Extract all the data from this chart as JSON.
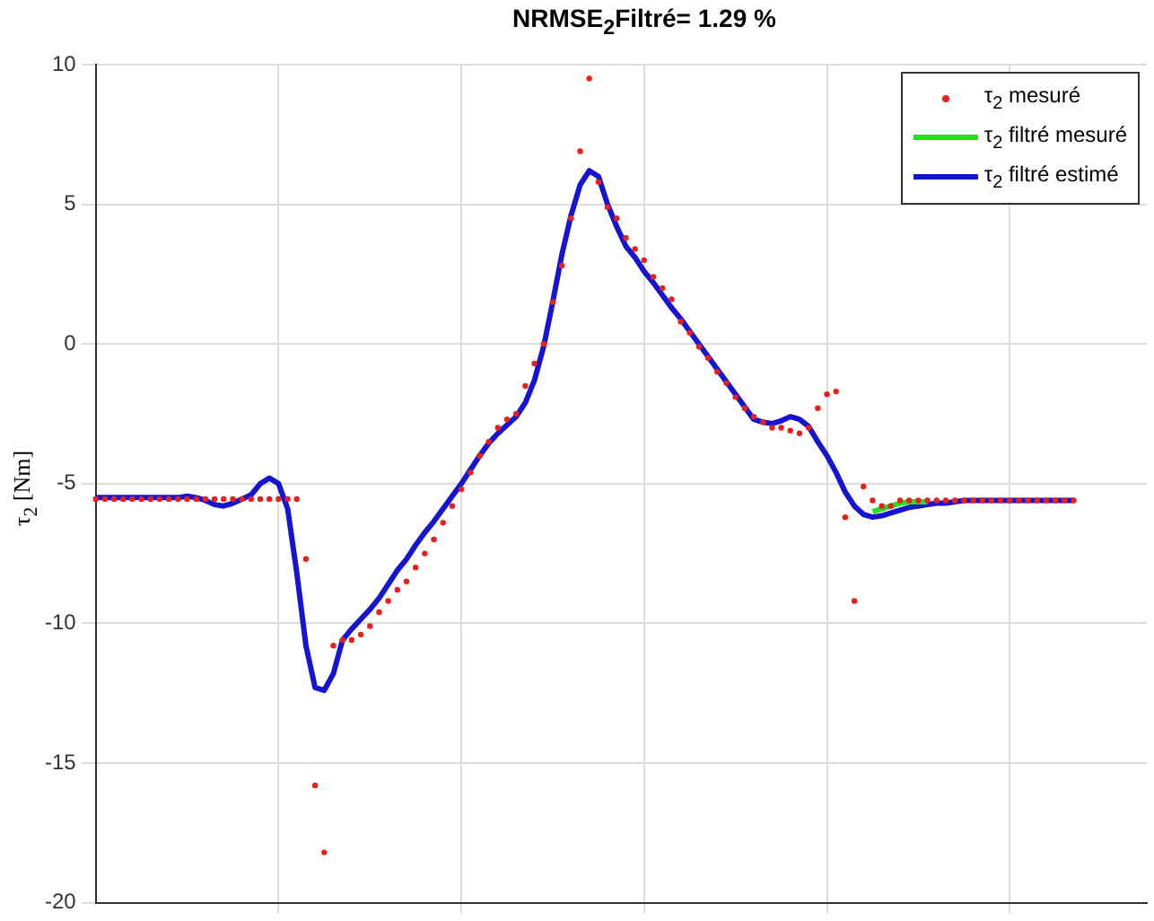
{
  "chart_data": {
    "type": "line",
    "title": "NRMSE$_{2}$Filtré=  1.29 %",
    "ylabel": "τ$_{2}$ [Nm]",
    "categories": [
      null,
      null,
      null,
      null,
      null,
      null,
      null,
      null,
      null,
      null,
      null,
      null,
      null,
      null,
      null,
      null,
      null,
      null,
      null,
      null,
      null,
      null,
      null,
      null,
      null,
      null,
      null,
      null,
      null,
      null,
      null,
      null,
      null,
      null,
      null,
      null,
      null,
      null,
      null,
      null,
      null,
      null,
      null,
      null,
      null,
      null,
      null,
      null,
      null,
      null,
      null,
      null,
      null,
      null,
      null,
      null,
      null,
      null,
      null,
      null,
      null,
      null,
      null,
      null,
      null,
      null,
      null,
      null,
      null,
      null,
      null,
      null,
      null,
      null,
      null,
      null,
      null,
      null,
      null,
      null,
      null,
      null,
      null,
      null,
      null,
      null,
      null,
      null,
      null,
      null,
      null,
      null,
      null,
      null,
      null,
      null,
      null,
      null,
      null,
      null,
      null,
      null,
      null,
      null,
      null,
      null,
      null,
      null,
      null,
      null,
      null,
      null,
      null,
      null,
      null,
      null
    ],
    "ylim": [
      -20,
      10
    ],
    "yticks": [
      -20,
      -15,
      -10,
      -5,
      0,
      5,
      10
    ],
    "grid": true,
    "legend": "top right",
    "tick_labels": "y",
    "series": [
      {
        "name": "τ$_{2}$ mesuré",
        "type": "scatter",
        "marker": "circle",
        "color": "#e8201c",
        "values": [
          -5.55,
          -5.55,
          -5.55,
          -5.55,
          -5.55,
          -5.55,
          -5.55,
          -5.55,
          -5.55,
          -5.55,
          -5.55,
          -5.55,
          -5.55,
          -5.55,
          -5.55,
          -5.55,
          -5.55,
          -5.55,
          -5.55,
          -5.55,
          -5.55,
          -5.55,
          -5.55,
          -7.7,
          -15.8,
          -18.2,
          -10.8,
          -10.6,
          -10.6,
          -10.4,
          -10.1,
          -9.6,
          -9.2,
          -8.8,
          -8.5,
          -8.0,
          -7.5,
          -7.0,
          -6.4,
          -5.8,
          -5.2,
          -4.6,
          -4.0,
          -3.5,
          -3.0,
          -2.7,
          -2.5,
          -1.5,
          -0.7,
          0.0,
          1.5,
          2.8,
          4.5,
          6.9,
          9.5,
          5.8,
          4.9,
          4.5,
          3.8,
          3.4,
          3.0,
          2.4,
          2.0,
          1.6,
          0.8,
          0.4,
          -0.1,
          -0.5,
          -1.0,
          -1.4,
          -1.9,
          -2.3,
          -2.6,
          -2.8,
          -3.0,
          -3.0,
          -3.1,
          -3.2,
          -3.0,
          -2.3,
          -1.8,
          -1.7,
          -6.2,
          -9.2,
          -5.1,
          -5.6,
          -5.8,
          -5.8,
          -5.6,
          -5.6,
          -5.6,
          -5.6,
          -5.6,
          -5.6,
          -5.6,
          -5.6,
          -5.6,
          -5.6,
          -5.6,
          -5.6,
          -5.6,
          -5.6,
          -5.6,
          -5.6,
          -5.6,
          -5.6,
          -5.6,
          -5.6,
          null,
          null,
          null,
          null,
          null,
          null,
          null,
          null
        ]
      },
      {
        "name": "τ$_{2}$ filtré mesuré",
        "color": "#22e022",
        "values": [
          null,
          null,
          null,
          null,
          null,
          null,
          null,
          null,
          null,
          null,
          null,
          null,
          null,
          null,
          null,
          null,
          null,
          null,
          null,
          null,
          null,
          null,
          null,
          null,
          null,
          null,
          null,
          null,
          null,
          null,
          null,
          null,
          null,
          null,
          null,
          null,
          null,
          null,
          null,
          null,
          null,
          null,
          null,
          null,
          null,
          null,
          null,
          null,
          null,
          null,
          null,
          null,
          null,
          null,
          null,
          null,
          null,
          null,
          null,
          null,
          null,
          null,
          null,
          null,
          null,
          null,
          null,
          null,
          null,
          null,
          null,
          null,
          null,
          null,
          null,
          null,
          null,
          null,
          null,
          null,
          null,
          null,
          null,
          null,
          null,
          -6.0,
          -5.9,
          -5.8,
          -5.7,
          -5.65,
          -5.65,
          -5.65,
          null,
          null,
          null,
          null,
          null,
          null,
          null,
          null,
          null,
          null,
          null,
          null,
          null,
          null,
          null,
          null,
          null,
          null,
          null,
          null,
          null,
          null,
          null,
          null
        ]
      },
      {
        "name": "τ$_{2}$ filtré estimé",
        "color": "#1414d2",
        "values": [
          -5.5,
          -5.5,
          -5.5,
          -5.5,
          -5.5,
          -5.5,
          -5.5,
          -5.5,
          -5.5,
          -5.5,
          -5.45,
          -5.5,
          -5.6,
          -5.75,
          -5.8,
          -5.7,
          -5.55,
          -5.4,
          -5.0,
          -4.8,
          -5.0,
          -5.9,
          -8.2,
          -10.8,
          -12.3,
          -12.4,
          -11.8,
          -10.6,
          -10.2,
          -9.85,
          -9.5,
          -9.1,
          -8.6,
          -8.1,
          -7.7,
          -7.2,
          -6.75,
          -6.35,
          -5.9,
          -5.45,
          -5.0,
          -4.5,
          -4.0,
          -3.55,
          -3.2,
          -2.9,
          -2.6,
          -2.1,
          -1.3,
          -0.1,
          1.5,
          3.2,
          4.6,
          5.7,
          6.2,
          6.0,
          5.0,
          4.2,
          3.5,
          3.1,
          2.6,
          2.2,
          1.75,
          1.3,
          0.9,
          0.45,
          0,
          -0.45,
          -0.9,
          -1.35,
          -1.8,
          -2.25,
          -2.7,
          -2.8,
          -2.85,
          -2.75,
          -2.6,
          -2.7,
          -2.95,
          -3.5,
          -4.0,
          -4.6,
          -5.3,
          -5.8,
          -6.1,
          -6.2,
          -6.15,
          -6.05,
          -5.95,
          -5.85,
          -5.8,
          -5.75,
          -5.7,
          -5.7,
          -5.65,
          -5.6,
          -5.6,
          -5.6,
          -5.6,
          -5.6,
          -5.6,
          -5.6,
          -5.6,
          -5.6,
          -5.6,
          -5.6,
          -5.6,
          -5.6,
          null,
          null,
          null,
          null,
          null,
          null,
          null,
          null
        ]
      }
    ]
  }
}
